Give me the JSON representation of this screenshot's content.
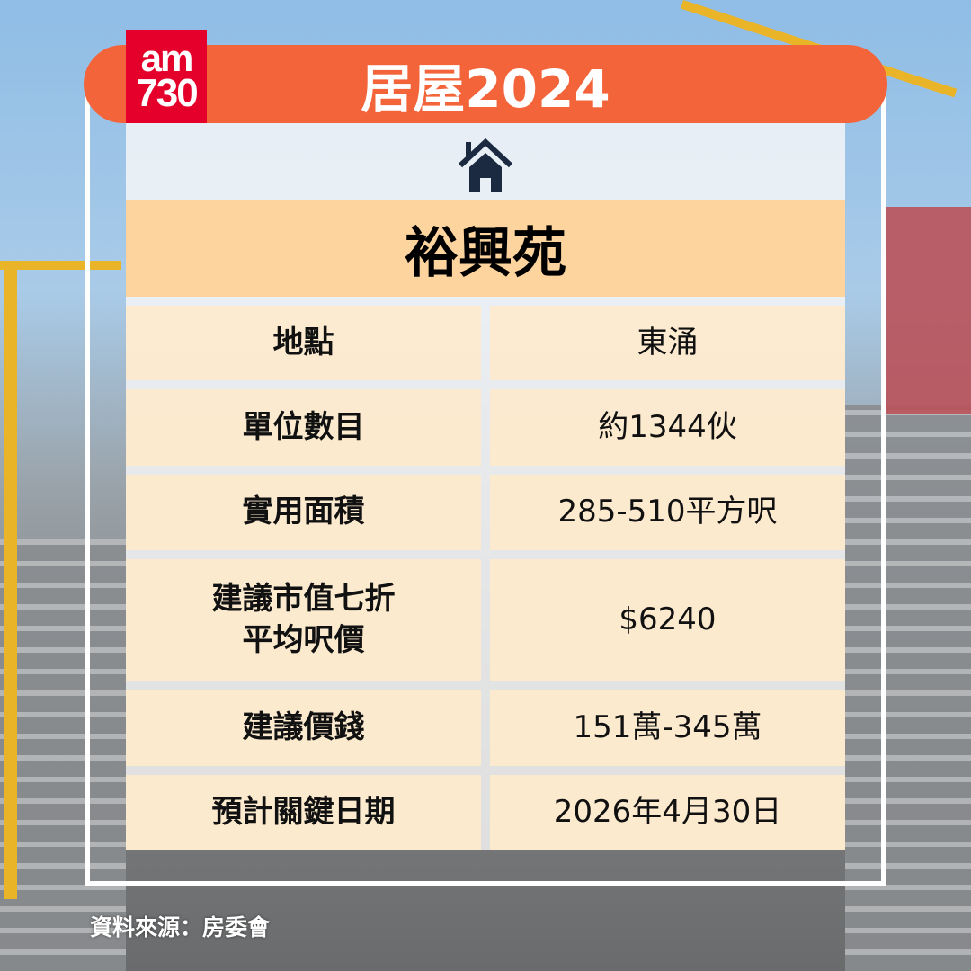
{
  "logo": {
    "line1": "am",
    "line2": "730"
  },
  "header": {
    "title": "居屋2024"
  },
  "estate": {
    "name": "裕興苑",
    "icon": "house-icon"
  },
  "rows": [
    {
      "label": "地點",
      "value": "東涌"
    },
    {
      "label": "單位數目",
      "value": "約1344伙"
    },
    {
      "label": "實用面積",
      "value": "285-510平方呎"
    },
    {
      "label": "建議市值七折\n平均呎價",
      "value": "$6240"
    },
    {
      "label": "建議價錢",
      "value": "151萬-345萬"
    },
    {
      "label": "預計關鍵日期",
      "value": "2026年4月30日"
    }
  ],
  "source": "資料來源：房委會",
  "colors": {
    "banner": "#f4643a",
    "logo": "#e4002b",
    "title_band": "#fdd49e",
    "cell": "#fdeace",
    "icon": "#1b2a41"
  }
}
